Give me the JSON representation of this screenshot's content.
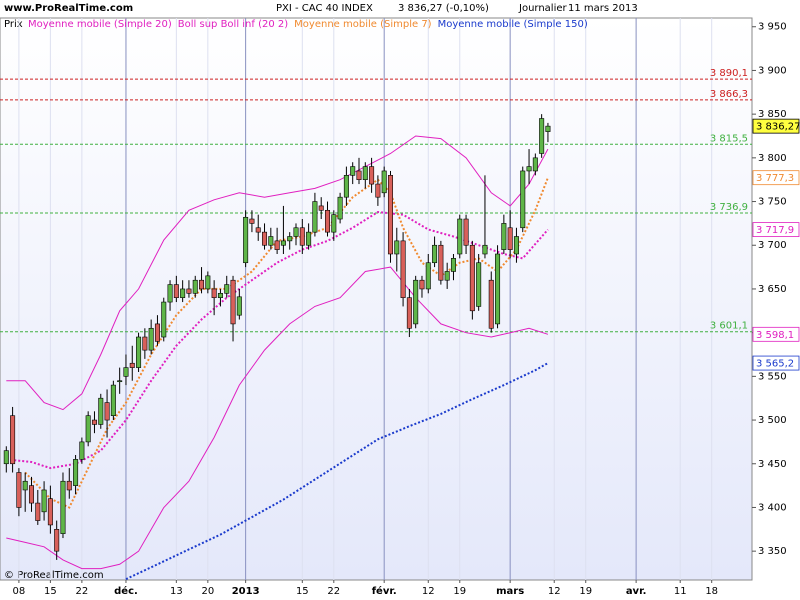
{
  "chart_data": {
    "type": "candlestick",
    "site": "www.ProRealTime.com",
    "title": "PXI - CAC 40 INDEX",
    "price": "3 836,27 (-0,10%)",
    "period": "Journalier",
    "date": "11 mars 2013",
    "price_label": "Prix",
    "copyright": "© ProRealTime.com",
    "up_color": "#5fb548",
    "down_color": "#d8605a",
    "x": [
      1,
      2,
      3,
      4,
      5,
      6,
      7,
      8,
      9,
      10,
      11,
      12,
      13,
      14,
      15,
      16,
      17,
      18,
      19,
      20,
      21,
      22,
      23,
      24,
      25,
      26,
      27,
      28,
      29,
      30,
      31,
      32,
      33,
      34,
      35,
      36,
      37,
      38,
      39,
      40,
      41,
      42,
      43,
      44,
      45,
      46,
      47,
      48,
      49,
      50,
      51,
      52,
      53,
      54,
      55,
      56,
      57,
      58,
      59,
      60,
      61,
      62,
      63,
      64,
      65,
      66,
      67,
      68,
      69,
      70,
      71,
      72,
      73,
      74,
      75,
      76,
      77,
      78,
      79,
      80,
      81,
      82,
      83,
      84,
      85,
      86,
      87
    ],
    "open": [
      3450,
      3505,
      3440,
      3420,
      3425,
      3405,
      3395,
      3410,
      3375,
      3370,
      3430,
      3425,
      3455,
      3475,
      3500,
      3495,
      3520,
      3505,
      3545,
      3550,
      3565,
      3560,
      3595,
      3580,
      3610,
      3595,
      3635,
      3655,
      3640,
      3650,
      3645,
      3660,
      3650,
      3650,
      3640,
      3645,
      3660,
      3620,
      3680,
      3730,
      3720,
      3715,
      3700,
      3705,
      3700,
      3705,
      3710,
      3720,
      3700,
      3715,
      3745,
      3740,
      3715,
      3730,
      3755,
      3780,
      3785,
      3775,
      3790,
      3770,
      3760,
      3780,
      3690,
      3705,
      3640,
      3610,
      3660,
      3650,
      3680,
      3700,
      3660,
      3670,
      3690,
      3730,
      3700,
      3630,
      3690,
      3660,
      3610,
      3695,
      3720,
      3690,
      3720,
      3785,
      3785,
      3805,
      3830
    ],
    "high": [
      3470,
      3515,
      3445,
      3440,
      3435,
      3420,
      3430,
      3425,
      3385,
      3440,
      3445,
      3460,
      3480,
      3510,
      3510,
      3530,
      3535,
      3545,
      3560,
      3575,
      3585,
      3600,
      3605,
      3615,
      3620,
      3640,
      3660,
      3665,
      3660,
      3660,
      3665,
      3675,
      3670,
      3660,
      3650,
      3665,
      3665,
      3650,
      3740,
      3740,
      3735,
      3725,
      3720,
      3720,
      3745,
      3715,
      3725,
      3730,
      3725,
      3760,
      3755,
      3750,
      3740,
      3760,
      3790,
      3795,
      3800,
      3795,
      3800,
      3780,
      3790,
      3785,
      3720,
      3715,
      3650,
      3665,
      3665,
      3690,
      3710,
      3705,
      3680,
      3690,
      3735,
      3735,
      3705,
      3690,
      3780,
      3670,
      3700,
      3735,
      3740,
      3720,
      3790,
      3810,
      3805,
      3850,
      3840
    ],
    "low": [
      3440,
      3440,
      3390,
      3395,
      3395,
      3380,
      3385,
      3370,
      3340,
      3365,
      3410,
      3415,
      3450,
      3470,
      3485,
      3490,
      3480,
      3500,
      3530,
      3540,
      3545,
      3555,
      3570,
      3575,
      3585,
      3590,
      3625,
      3635,
      3635,
      3640,
      3640,
      3645,
      3645,
      3620,
      3630,
      3640,
      3590,
      3615,
      3675,
      3715,
      3705,
      3695,
      3695,
      3690,
      3690,
      3695,
      3700,
      3690,
      3695,
      3710,
      3730,
      3710,
      3705,
      3725,
      3745,
      3770,
      3770,
      3765,
      3760,
      3745,
      3755,
      3680,
      3670,
      3630,
      3595,
      3605,
      3640,
      3645,
      3675,
      3655,
      3650,
      3660,
      3685,
      3690,
      3615,
      3625,
      3685,
      3600,
      3605,
      3690,
      3685,
      3680,
      3715,
      3770,
      3780,
      3800,
      3818
    ],
    "close": [
      3465,
      3450,
      3400,
      3430,
      3405,
      3385,
      3420,
      3380,
      3350,
      3430,
      3420,
      3455,
      3475,
      3505,
      3495,
      3525,
      3500,
      3540,
      3545,
      3560,
      3560,
      3595,
      3580,
      3605,
      3590,
      3635,
      3655,
      3640,
      3650,
      3645,
      3660,
      3650,
      3665,
      3640,
      3645,
      3655,
      3610,
      3641,
      3732,
      3725,
      3715,
      3700,
      3710,
      3695,
      3705,
      3710,
      3720,
      3700,
      3715,
      3750,
      3740,
      3715,
      3735,
      3755,
      3780,
      3790,
      3775,
      3790,
      3770,
      3755,
      3785,
      3690,
      3705,
      3640,
      3605,
      3660,
      3650,
      3680,
      3700,
      3660,
      3670,
      3685,
      3730,
      3700,
      3625,
      3680,
      3700,
      3605,
      3690,
      3725,
      3695,
      3710,
      3785,
      3790,
      3800,
      3845,
      3836.27
    ],
    "lines": [
      {
        "name": "Moyenne mobile (Simple 20)",
        "color": "#e020c0",
        "style": "dotted",
        "x": [
          1,
          5,
          8,
          12,
          16,
          20,
          24,
          28,
          32,
          36,
          40,
          44,
          48,
          52,
          56,
          60,
          64,
          68,
          72,
          76,
          80,
          83,
          87
        ],
        "values": [
          3455,
          3452,
          3445,
          3450,
          3465,
          3500,
          3545,
          3585,
          3615,
          3640,
          3660,
          3680,
          3695,
          3705,
          3720,
          3738,
          3735,
          3718,
          3710,
          3700,
          3690,
          3685,
          3717.9
        ]
      },
      {
        "name": "Boll sup Boll inf (20 2)",
        "color": "#e020c0",
        "style": "solid",
        "x": [
          1,
          4,
          7,
          10,
          13,
          16,
          19,
          22,
          26,
          30,
          34,
          38,
          42,
          46,
          50,
          54,
          58,
          62,
          66,
          70,
          74,
          78,
          81,
          84,
          87
        ],
        "upper": [
          3545,
          3545,
          3520,
          3512,
          3530,
          3575,
          3625,
          3650,
          3706,
          3740,
          3752,
          3760,
          3755,
          3760,
          3765,
          3775,
          3790,
          3805,
          3825,
          3822,
          3800,
          3760,
          3745,
          3770,
          3810
        ],
        "lower": [
          3365,
          3360,
          3355,
          3340,
          3330,
          3330,
          3335,
          3350,
          3400,
          3430,
          3480,
          3540,
          3580,
          3610,
          3630,
          3640,
          3670,
          3675,
          3640,
          3610,
          3600,
          3595,
          3600,
          3605,
          3598.1
        ]
      },
      {
        "name": "Moyenne mobile (Simple 7)",
        "color": "#f08a30",
        "style": "dotted",
        "x": [
          4,
          8,
          11,
          14,
          17,
          20,
          24,
          28,
          32,
          36,
          40,
          44,
          48,
          52,
          56,
          60,
          62,
          64,
          67,
          70,
          73,
          76,
          79,
          82,
          85,
          87
        ],
        "values": [
          3440,
          3410,
          3400,
          3445,
          3490,
          3520,
          3575,
          3620,
          3650,
          3650,
          3670,
          3705,
          3710,
          3720,
          3755,
          3775,
          3760,
          3720,
          3680,
          3665,
          3680,
          3685,
          3670,
          3695,
          3740,
          3777.3
        ]
      },
      {
        "name": "Moyenne mobile (Simple 150)",
        "color": "#1a3acc",
        "style": "dotted",
        "x": [
          20,
          25,
          30,
          35,
          40,
          45,
          50,
          55,
          60,
          65,
          70,
          75,
          80,
          85,
          87
        ],
        "values": [
          3318,
          3335,
          3352,
          3369,
          3389,
          3409,
          3432,
          3455,
          3478,
          3493,
          3507,
          3524,
          3540,
          3557,
          3565.2
        ]
      }
    ],
    "levels": [
      {
        "value": 3890.1,
        "label": "3 890,1",
        "color": "#cc2020"
      },
      {
        "value": 3866.3,
        "label": "3 866,3",
        "color": "#cc2020"
      },
      {
        "value": 3815.5,
        "label": "3 815,5",
        "color": "#40b040"
      },
      {
        "value": 3736.9,
        "label": "3 736,9",
        "color": "#40b040"
      },
      {
        "value": 3601.1,
        "label": "3 601,1",
        "color": "#40b040"
      }
    ],
    "markers": [
      {
        "value": 3836.27,
        "label": "3 836,27",
        "color": "#000000",
        "background": "#ffff40"
      },
      {
        "value": 3777.3,
        "label": "3 777,3",
        "color": "#f08a30",
        "background": "#ffffff"
      },
      {
        "value": 3717.9,
        "label": "3 717,9",
        "color": "#e020c0",
        "background": "#ffffff"
      },
      {
        "value": 3598.1,
        "label": "3 598,1",
        "color": "#e020c0",
        "background": "#ffffff"
      },
      {
        "value": 3565.2,
        "label": "3 565,2",
        "color": "#1a3acc",
        "background": "#ffffff"
      }
    ],
    "xlim": [
      0,
      119.4
    ],
    "xticks": [
      {
        "value": 3,
        "label": "08"
      },
      {
        "value": 8,
        "label": "15"
      },
      {
        "value": 13,
        "label": "22"
      },
      {
        "value": 20,
        "label": "déc.",
        "major": true
      },
      {
        "value": 28,
        "label": "13"
      },
      {
        "value": 33,
        "label": "20"
      },
      {
        "value": 39,
        "label": "2013",
        "major": true
      },
      {
        "value": 48,
        "label": "15"
      },
      {
        "value": 53,
        "label": "22"
      },
      {
        "value": 61,
        "label": "févr.",
        "major": true
      },
      {
        "value": 68,
        "label": "12"
      },
      {
        "value": 73,
        "label": "19"
      },
      {
        "value": 81,
        "label": "mars",
        "major": true
      },
      {
        "value": 88,
        "label": "12"
      },
      {
        "value": 93,
        "label": "19"
      },
      {
        "value": 101,
        "label": "avr.",
        "major": true
      },
      {
        "value": 108,
        "label": "11"
      },
      {
        "value": 113,
        "label": "18"
      }
    ],
    "ylim": [
      3317,
      3960
    ],
    "yticks": [
      {
        "value": 3350,
        "label": "3 350"
      },
      {
        "value": 3400,
        "label": "3 400"
      },
      {
        "value": 3450,
        "label": "3 450"
      },
      {
        "value": 3500,
        "label": "3 500"
      },
      {
        "value": 3550,
        "label": "3 550"
      },
      {
        "value": 3600,
        "label": "3 600"
      },
      {
        "value": 3650,
        "label": "3 650"
      },
      {
        "value": 3700,
        "label": "3 700"
      },
      {
        "value": 3750,
        "label": "3 750"
      },
      {
        "value": 3800,
        "label": "3 800"
      },
      {
        "value": 3850,
        "label": "3 850"
      },
      {
        "value": 3900,
        "label": "3 900"
      },
      {
        "value": 3950,
        "label": "3 950"
      }
    ]
  }
}
